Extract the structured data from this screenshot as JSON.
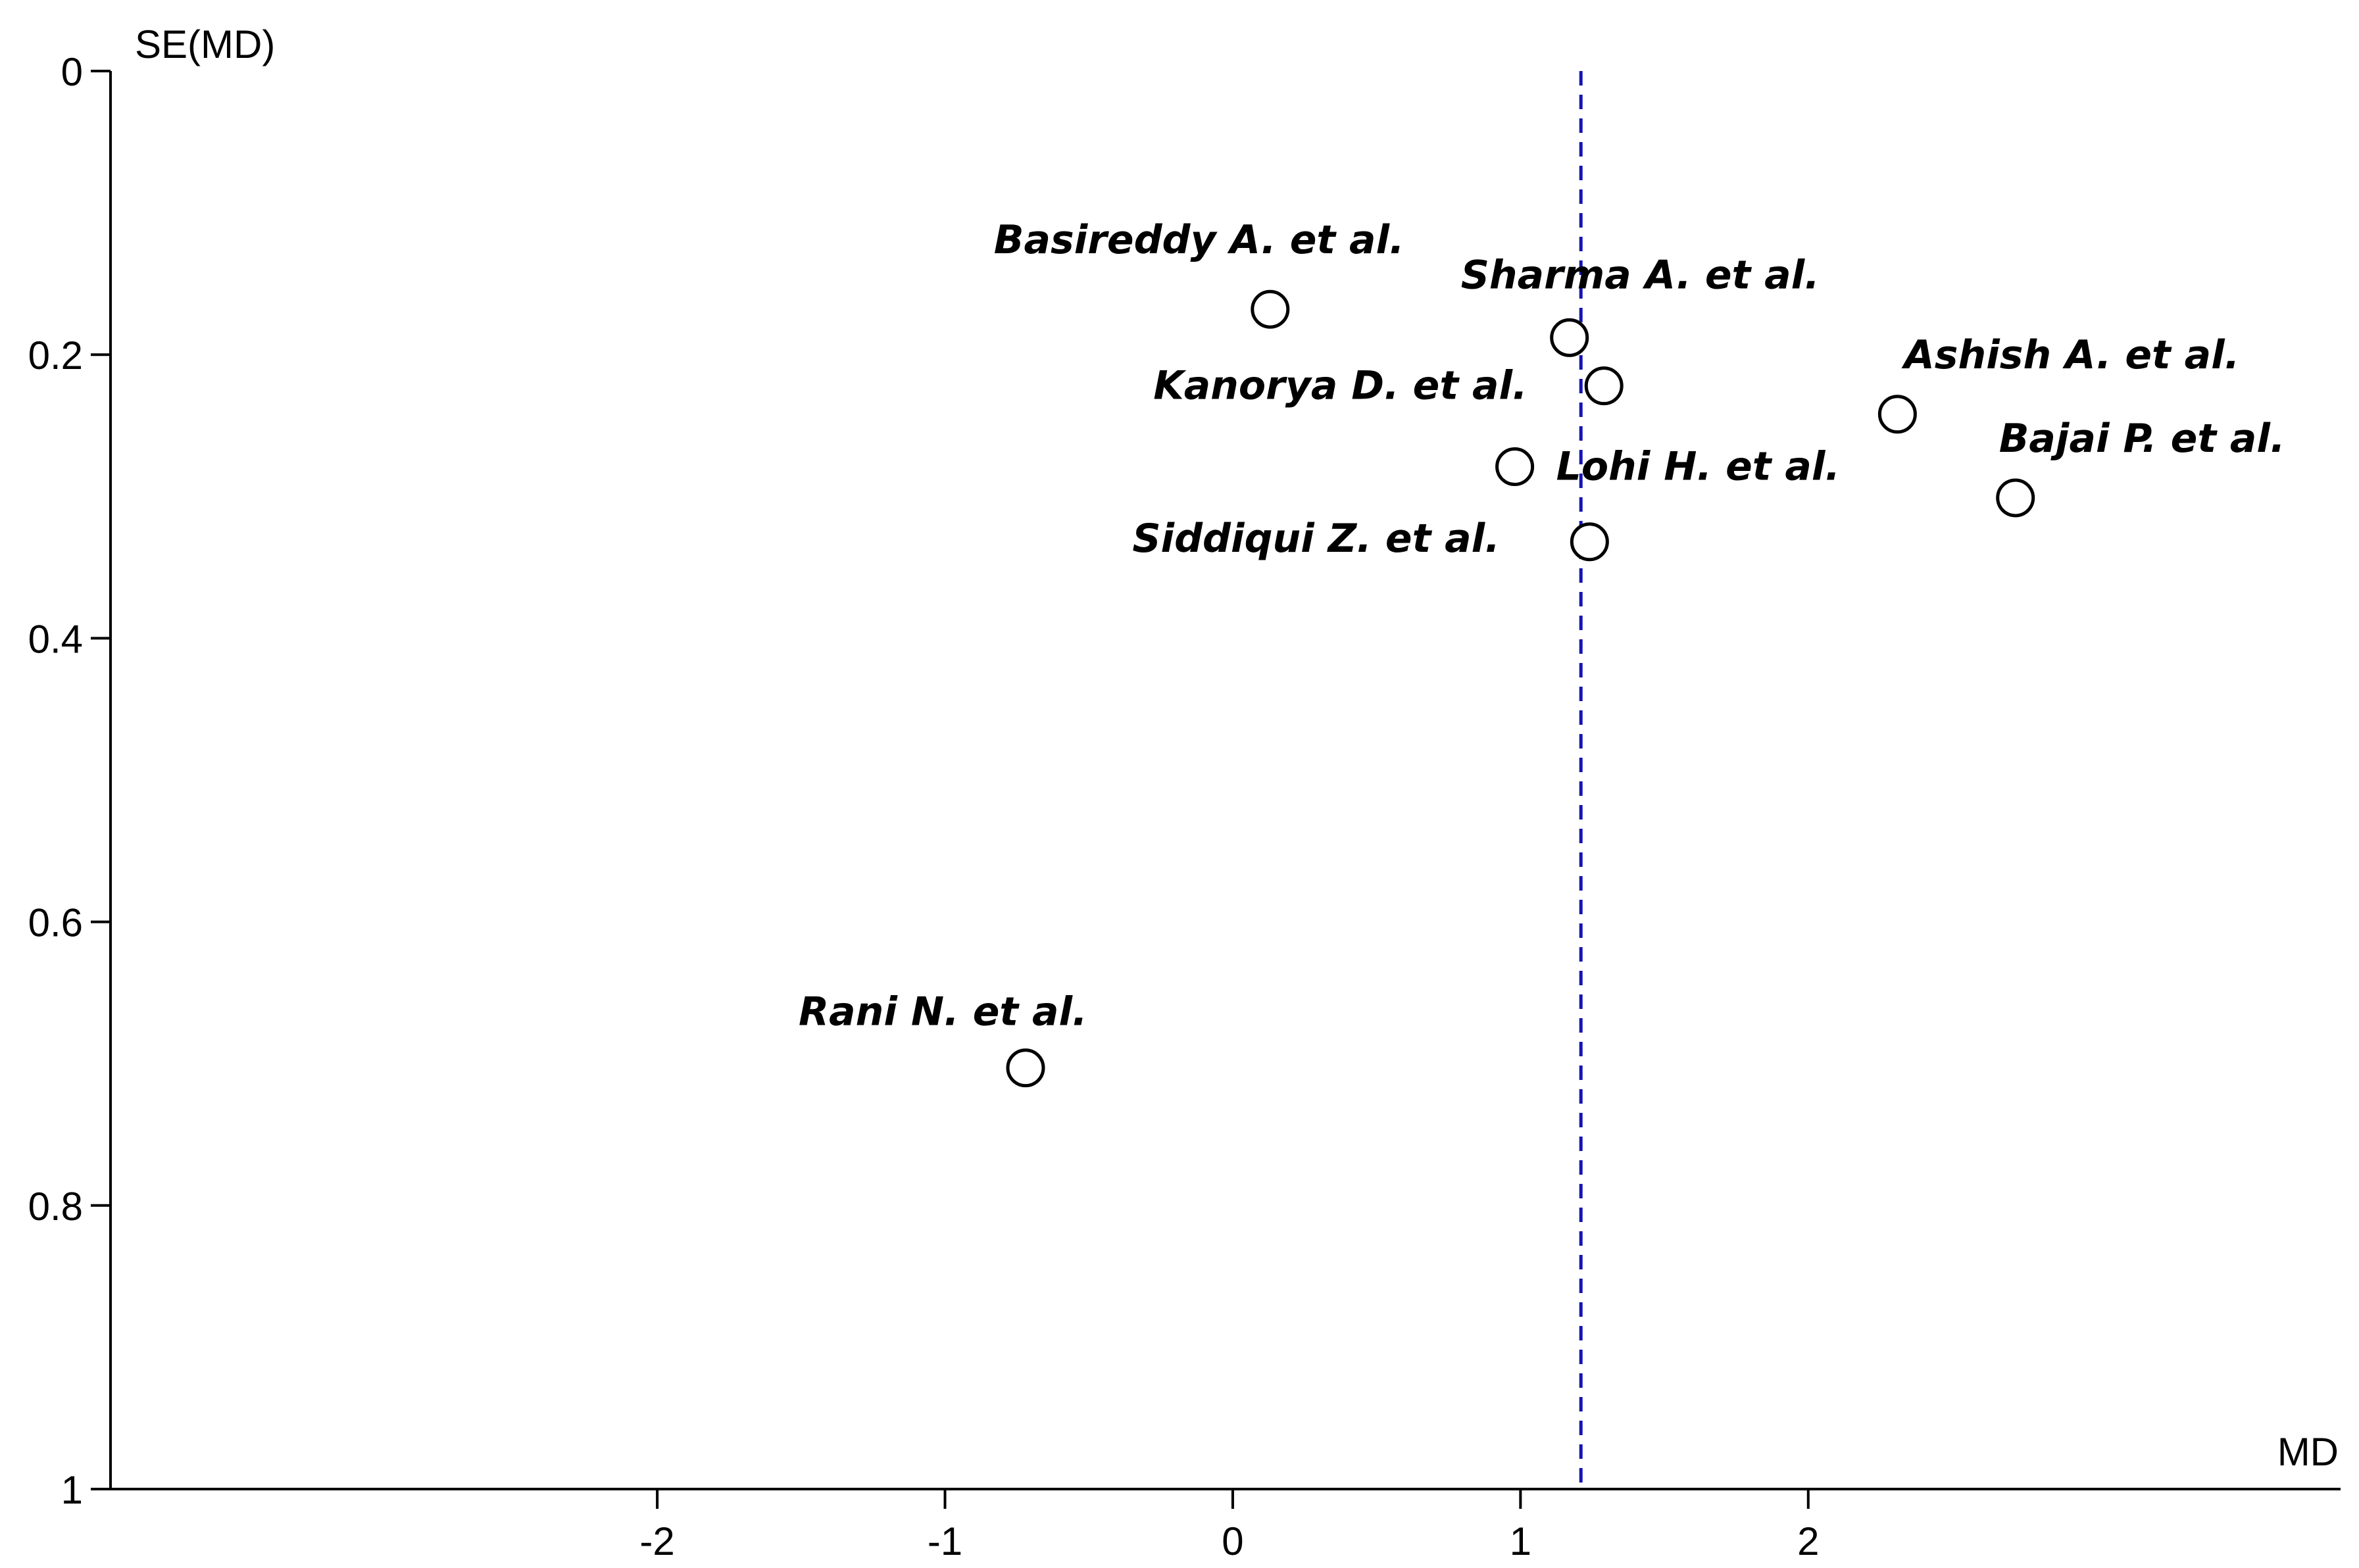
{
  "chart_data": {
    "type": "scatter",
    "xlabel": "MD",
    "ylabel": "SE(MD)",
    "x_ticks": [
      -2,
      -1,
      0,
      1,
      2
    ],
    "y_ticks": [
      0,
      0.2,
      0.4,
      0.6,
      0.8,
      1
    ],
    "x_tick_labels": [
      "-2",
      "-1",
      "0",
      "1",
      "2"
    ],
    "y_tick_labels": [
      "0",
      "0.2",
      "0.4",
      "0.6",
      "0.8",
      "1"
    ],
    "xlim": [
      -3.9,
      3.85
    ],
    "ylim": [
      0,
      1
    ],
    "y_inverted": true,
    "reference_line": {
      "x": 1.21,
      "color": "#1414b4",
      "style": "dashed"
    },
    "grid": false,
    "points": [
      {
        "label": "Basireddy A. et al.",
        "x": 0.13,
        "y": 0.168
      },
      {
        "label": "Sharma A. et al.",
        "x": 1.17,
        "y": 0.188
      },
      {
        "label": "Kanorya D. et al.",
        "x": 1.29,
        "y": 0.222
      },
      {
        "label": "Ashish A. et al.",
        "x": 2.31,
        "y": 0.242
      },
      {
        "label": "Lohi H. et al.",
        "x": 0.98,
        "y": 0.279
      },
      {
        "label": "Bajai P. et al.",
        "x": 2.72,
        "y": 0.301
      },
      {
        "label": "Siddiqui Z. et al.",
        "x": 1.24,
        "y": 0.332
      },
      {
        "label": "Rani N. et al.",
        "x": -0.72,
        "y": 0.703
      }
    ]
  }
}
